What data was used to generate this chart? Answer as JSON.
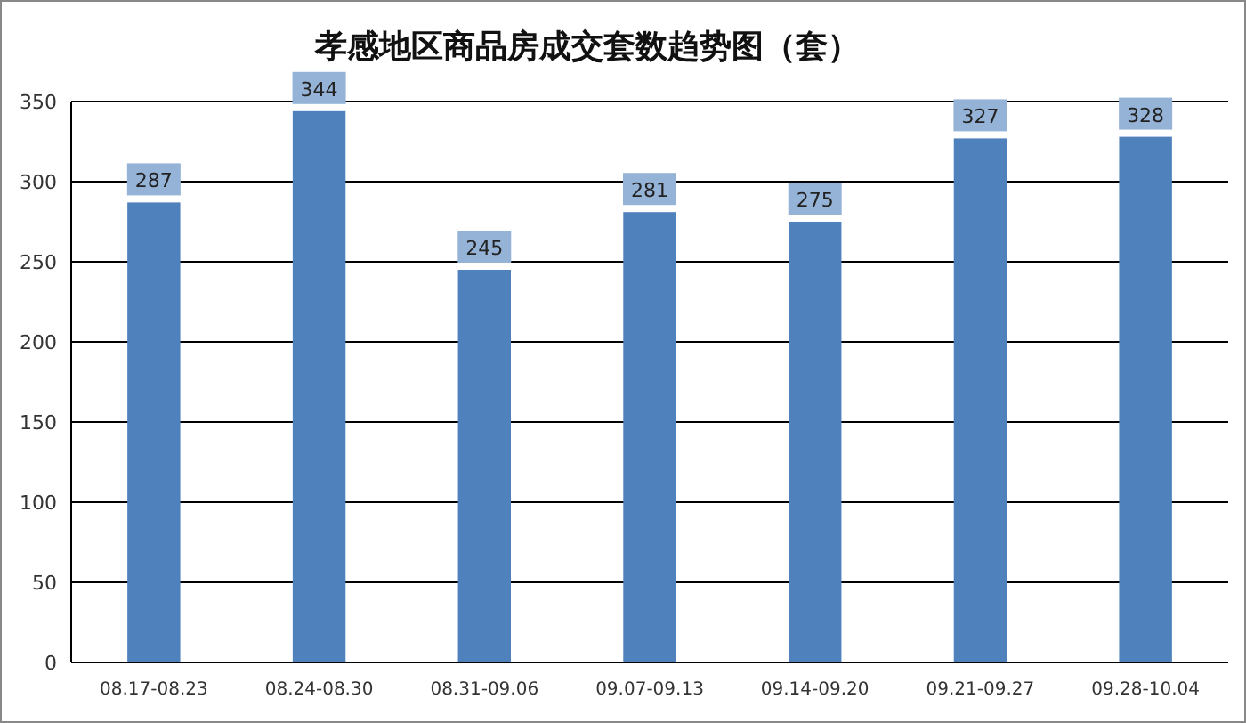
{
  "chart_data": {
    "type": "bar",
    "title": "孝感地区商品房成交套数趋势图（套）",
    "categories": [
      "08.17-08.23",
      "08.24-08.30",
      "08.31-09.06",
      "09.07-09.13",
      "09.14-09.20",
      "09.21-09.27",
      "09.28-10.04"
    ],
    "values": [
      287,
      344,
      245,
      281,
      275,
      327,
      328
    ],
    "color": "#4f81bd",
    "ylim": [
      0,
      350
    ],
    "yticks": [
      0,
      50,
      100,
      150,
      200,
      250,
      300,
      350
    ],
    "grid": "y",
    "data_labels": true
  }
}
